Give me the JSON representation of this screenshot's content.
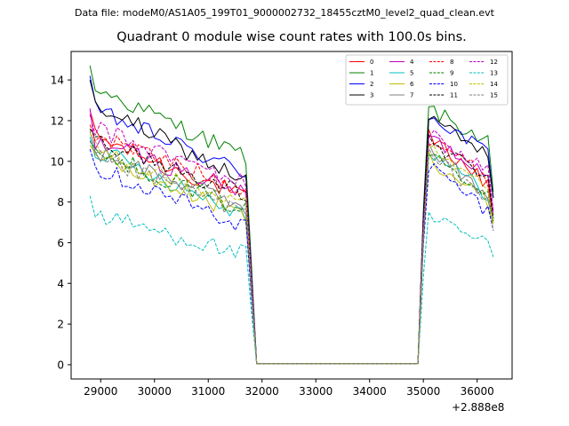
{
  "figure": {
    "suptitle": "Data file: modeM0/AS1A05_199T01_9000002732_18455cztM0_level2_quad_clean.evt",
    "offset_text": "+2.888e8"
  },
  "chart_data": {
    "type": "line",
    "title": "Quadrant 0 module wise count rates with 100.0s bins.",
    "xlabel": "",
    "ylabel": "",
    "x_offset": 288800000,
    "xlim": [
      28450,
      36650
    ],
    "ylim": [
      -0.7,
      15.4
    ],
    "x_ticks": [
      29000,
      30000,
      31000,
      32000,
      33000,
      34000,
      35000,
      36000
    ],
    "x_tick_labels": [
      "29000",
      "30000",
      "31000",
      "32000",
      "33000",
      "34000",
      "35000",
      "36000"
    ],
    "y_ticks": [
      0,
      2,
      4,
      6,
      8,
      10,
      12,
      14
    ],
    "y_tick_labels": [
      "0",
      "2",
      "4",
      "6",
      "8",
      "10",
      "12",
      "14"
    ],
    "grid": false,
    "legend_position": "top-right",
    "x": {
      "seg1_start": 28800,
      "seg1_end": 31700,
      "seg2_start": 35100,
      "seg2_end": 36300,
      "step": 100
    },
    "series": [
      {
        "name": "0",
        "color": "#ff0000",
        "style": "solid",
        "first": 12.5,
        "start": 11.2,
        "end": 8.2,
        "peak2": 11.2,
        "end2": 8.9,
        "last": 7.0,
        "after_drop": 0.05
      },
      {
        "name": "1",
        "color": "#008000",
        "style": "solid",
        "first": 14.7,
        "start": 13.6,
        "end": 10.2,
        "peak2": 12.6,
        "end2": 10.9,
        "last": 8.5,
        "after_drop": 0.05
      },
      {
        "name": "2",
        "color": "#0000ff",
        "style": "solid",
        "first": 14.2,
        "start": 12.5,
        "end": 9.4,
        "peak2": 12.3,
        "end2": 10.4,
        "last": 8.2,
        "after_drop": 0.05
      },
      {
        "name": "3",
        "color": "#000000",
        "style": "solid",
        "first": 14.0,
        "start": 12.8,
        "end": 9.0,
        "peak2": 12.2,
        "end2": 10.2,
        "last": 8.2,
        "after_drop": 0.05
      },
      {
        "name": "4",
        "color": "#bf00bf",
        "style": "solid",
        "first": 12.6,
        "start": 11.0,
        "end": 8.4,
        "peak2": 11.2,
        "end2": 9.4,
        "last": 7.5,
        "after_drop": 0.05
      },
      {
        "name": "5",
        "color": "#00bfbf",
        "style": "solid",
        "first": 11.2,
        "start": 10.6,
        "end": 7.4,
        "peak2": 10.6,
        "end2": 8.4,
        "last": 7.2,
        "after_drop": 0.05
      },
      {
        "name": "6",
        "color": "#bfbf00",
        "style": "solid",
        "first": 10.8,
        "start": 10.2,
        "end": 7.3,
        "peak2": 10.2,
        "end2": 8.0,
        "last": 6.9,
        "after_drop": 0.05
      },
      {
        "name": "7",
        "color": "#808080",
        "style": "solid",
        "first": 11.5,
        "start": 10.5,
        "end": 7.8,
        "peak2": 10.6,
        "end2": 8.3,
        "last": 7.1,
        "after_drop": 0.05
      },
      {
        "name": "8",
        "color": "#ff0000",
        "style": "dashed",
        "first": 11.8,
        "start": 11.3,
        "end": 8.6,
        "peak2": 11.2,
        "end2": 9.2,
        "last": 7.3,
        "after_drop": 0.05
      },
      {
        "name": "9",
        "color": "#008000",
        "style": "dashed",
        "first": 11.0,
        "start": 10.5,
        "end": 7.6,
        "peak2": 10.4,
        "end2": 8.6,
        "last": 7.0,
        "after_drop": 0.05
      },
      {
        "name": "10",
        "color": "#0000ff",
        "style": "dashed",
        "first": 10.6,
        "start": 9.7,
        "end": 6.8,
        "peak2": 9.8,
        "end2": 7.6,
        "last": 6.6,
        "after_drop": 0.05
      },
      {
        "name": "11",
        "color": "#000000",
        "style": "dashed",
        "first": 11.6,
        "start": 11.1,
        "end": 8.3,
        "peak2": 11.0,
        "end2": 9.1,
        "last": 7.2,
        "after_drop": 0.05
      },
      {
        "name": "12",
        "color": "#bf00bf",
        "style": "dashed",
        "first": 12.3,
        "start": 11.6,
        "end": 8.9,
        "peak2": 11.4,
        "end2": 9.6,
        "last": 7.6,
        "after_drop": 0.05
      },
      {
        "name": "13",
        "color": "#00bfbf",
        "style": "dashed",
        "first": 8.3,
        "start": 7.4,
        "end": 5.4,
        "peak2": 7.2,
        "end2": 6.0,
        "last": 5.3,
        "after_drop": 0.05
      },
      {
        "name": "14",
        "color": "#bfbf00",
        "style": "dashed",
        "first": 11.4,
        "start": 10.6,
        "end": 7.8,
        "peak2": 10.6,
        "end2": 8.5,
        "last": 7.0,
        "after_drop": 0.05
      },
      {
        "name": "15",
        "color": "#808080",
        "style": "dashed",
        "first": 11.0,
        "start": 10.2,
        "end": 7.5,
        "peak2": 10.3,
        "end2": 8.2,
        "last": 6.6,
        "after_drop": 0.05
      }
    ]
  }
}
